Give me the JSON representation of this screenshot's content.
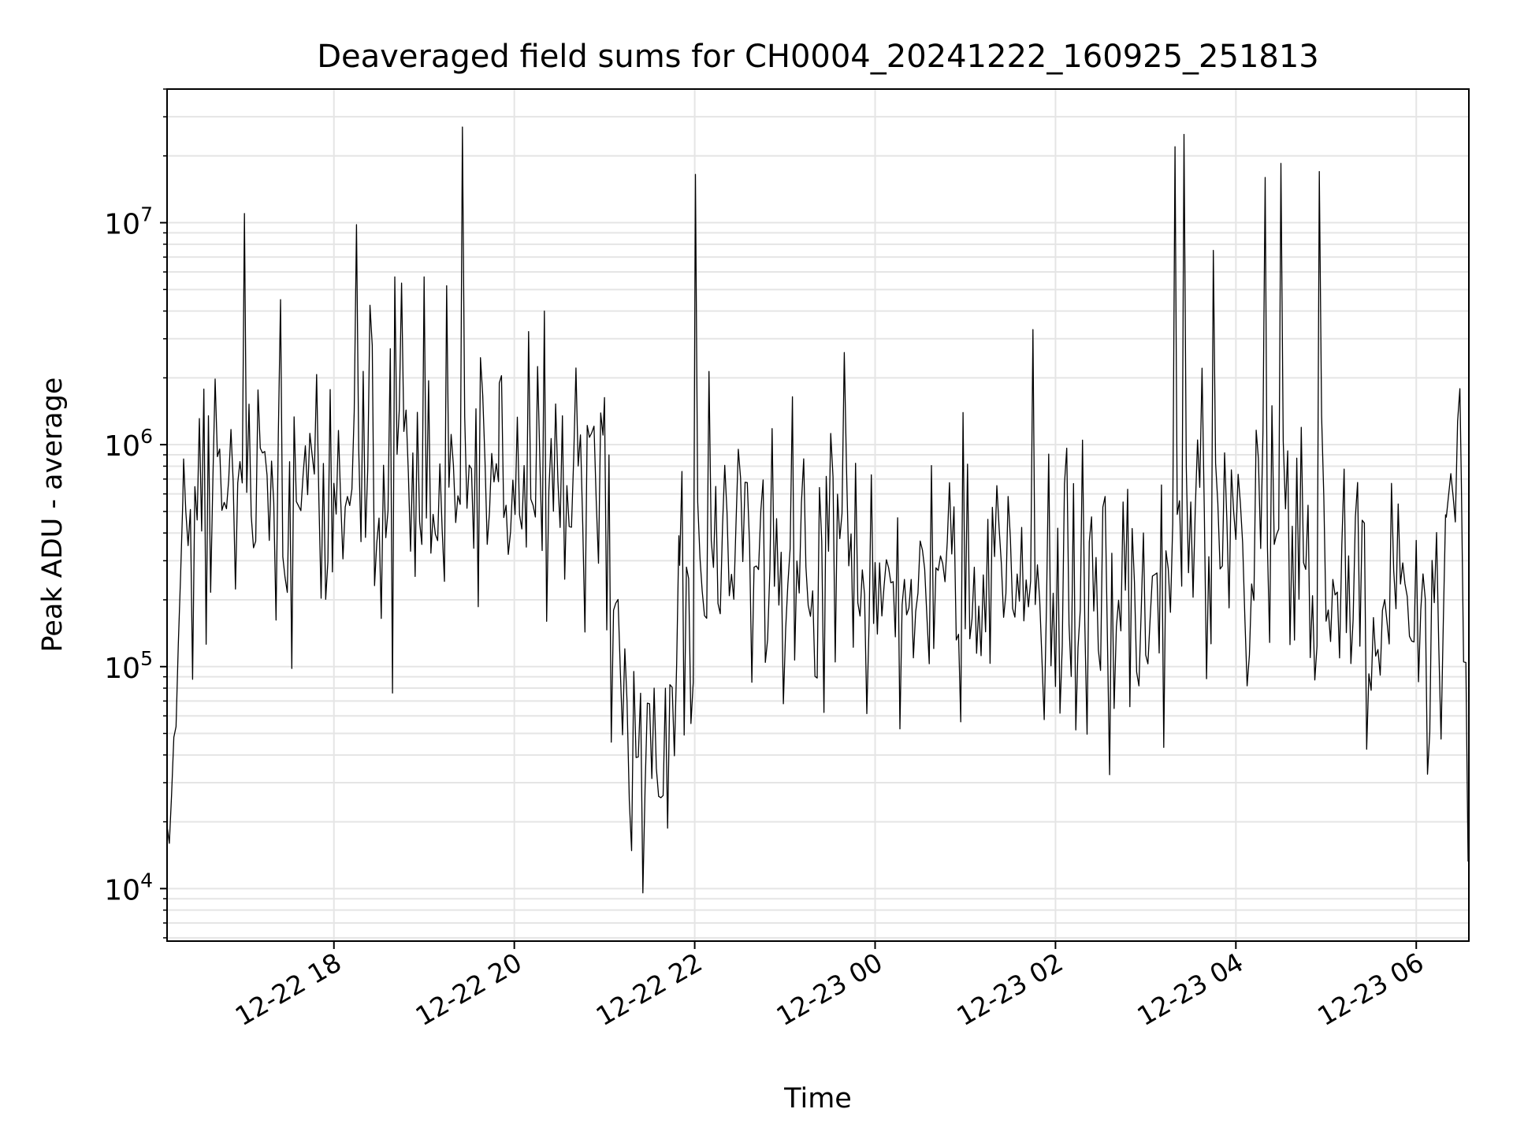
{
  "chart_data": {
    "type": "line",
    "title": "Deaveraged field sums for CH0004_20241222_160925_251813",
    "xlabel": "Time",
    "ylabel": "Peak ADU - average",
    "yscale": "log",
    "ylim": [
      5800,
      40000000
    ],
    "xlim": [
      "2024-12-22 16:09",
      "2024-12-23 06:35"
    ],
    "grid": true,
    "x_ticks": [
      "12-22 18",
      "12-22 20",
      "12-22 22",
      "12-23 00",
      "12-23 02",
      "12-23 04",
      "12-23 06"
    ],
    "y_ticks": [
      {
        "base": "10",
        "exp": "4",
        "value": 10000
      },
      {
        "base": "10",
        "exp": "5",
        "value": 100000
      },
      {
        "base": "10",
        "exp": "6",
        "value": 1000000
      },
      {
        "base": "10",
        "exp": "7",
        "value": 10000000
      }
    ],
    "line_color": "#000000",
    "grid_color": "#e5e5e5",
    "segments": [
      {
        "start": "2024-12-22 16:09",
        "end": "2024-12-22 16:15",
        "from": 17000,
        "to": 45000,
        "median": 25000,
        "spread": 0.15
      },
      {
        "start": "2024-12-22 16:15",
        "end": "2024-12-22 16:20",
        "from": 45000,
        "to": 700000,
        "median": 250000,
        "spread": 0.2
      },
      {
        "start": "2024-12-22 16:20",
        "end": "2024-12-22 18:00",
        "median": 500000,
        "spread": 0.32
      },
      {
        "start": "2024-12-22 18:00",
        "end": "2024-12-22 19:50",
        "median": 620000,
        "spread": 0.3
      },
      {
        "start": "2024-12-22 19:50",
        "end": "2024-12-22 21:00",
        "median": 750000,
        "spread": 0.28
      },
      {
        "start": "2024-12-22 21:00",
        "end": "2024-12-22 21:15",
        "from": 350000,
        "to": 60000,
        "median": 120000,
        "spread": 0.3
      },
      {
        "start": "2024-12-22 21:15",
        "end": "2024-12-22 21:45",
        "median": 30000,
        "spread": 0.3
      },
      {
        "start": "2024-12-22 21:45",
        "end": "2024-12-22 21:50",
        "from": 40000,
        "to": 300000,
        "median": 150000,
        "spread": 0.25
      },
      {
        "start": "2024-12-22 21:50",
        "end": "2024-12-23 00:00",
        "median": 280000,
        "spread": 0.33
      },
      {
        "start": "2024-12-23 00:00",
        "end": "2024-12-23 03:15",
        "median": 230000,
        "spread": 0.33
      },
      {
        "start": "2024-12-23 03:15",
        "end": "2024-12-23 05:00",
        "median": 420000,
        "spread": 0.34
      },
      {
        "start": "2024-12-23 05:00",
        "end": "2024-12-23 06:20",
        "median": 220000,
        "spread": 0.3
      },
      {
        "start": "2024-12-23 06:20",
        "end": "2024-12-23 06:30",
        "median": 500000,
        "spread": 0.25
      },
      {
        "start": "2024-12-23 06:30",
        "end": "2024-12-23 06:35",
        "from": 500000,
        "to": 15000,
        "median": 40000,
        "spread": 0.2
      }
    ],
    "spikes": [
      {
        "t": "2024-12-22 17:00",
        "y": 11000000
      },
      {
        "t": "2024-12-22 17:25",
        "y": 4500000
      },
      {
        "t": "2024-12-22 18:15",
        "y": 9800000
      },
      {
        "t": "2024-12-22 18:40",
        "y": 5700000
      },
      {
        "t": "2024-12-22 19:00",
        "y": 5700000
      },
      {
        "t": "2024-12-22 19:15",
        "y": 5200000
      },
      {
        "t": "2024-12-22 19:25",
        "y": 27000000
      },
      {
        "t": "2024-12-22 20:20",
        "y": 4000000
      },
      {
        "t": "2024-12-22 22:00",
        "y": 16500000
      },
      {
        "t": "2024-12-22 23:40",
        "y": 2600000
      },
      {
        "t": "2024-12-23 01:45",
        "y": 3300000
      },
      {
        "t": "2024-12-23 03:20",
        "y": 22000000
      },
      {
        "t": "2024-12-23 03:25",
        "y": 25000000
      },
      {
        "t": "2024-12-23 03:45",
        "y": 7500000
      },
      {
        "t": "2024-12-23 04:20",
        "y": 16000000
      },
      {
        "t": "2024-12-23 04:30",
        "y": 18500000
      },
      {
        "t": "2024-12-23 04:55",
        "y": 17000000
      }
    ]
  }
}
